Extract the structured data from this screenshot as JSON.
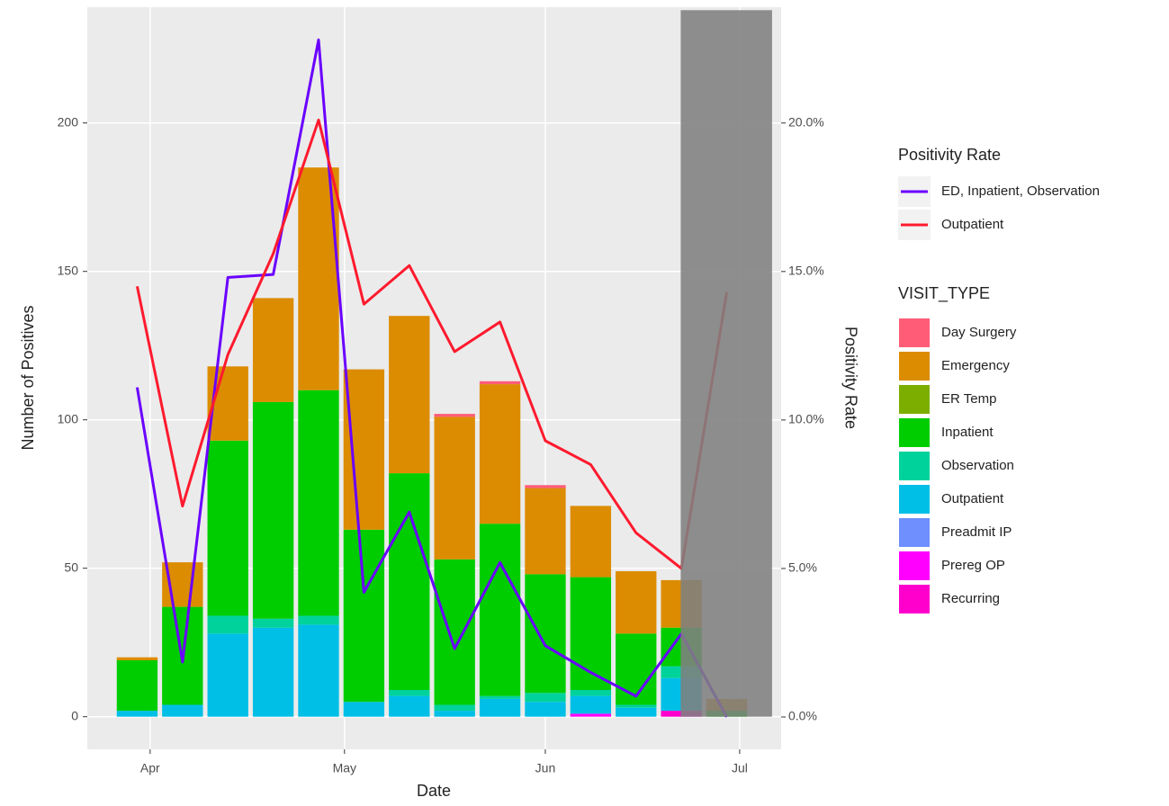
{
  "chart_data": {
    "type": "bar",
    "xlabel": "Date",
    "ylabel": "Number of Positives",
    "y2label": "Positivity Rate",
    "line_legend_title": "Positivity Rate",
    "bar_legend_title": "VISIT_TYPE",
    "x": [
      89,
      96,
      103,
      110,
      117,
      124,
      131,
      138,
      145,
      152,
      159,
      166,
      173,
      180
    ],
    "xlim": [
      81.3,
      188.4
    ],
    "xticks": [
      {
        "value": 91,
        "label": "Apr"
      },
      {
        "value": 121,
        "label": "May"
      },
      {
        "value": 152,
        "label": "Jun"
      },
      {
        "value": 182,
        "label": "Jul"
      }
    ],
    "ylim": [
      -11,
      239
    ],
    "yticks": [
      0,
      50,
      100,
      150,
      200
    ],
    "y2lim": [
      -1.09,
      23.9
    ],
    "y2ticks": [
      {
        "value": 0,
        "label": "0.0%"
      },
      {
        "value": 5,
        "label": "5.0%"
      },
      {
        "value": 10,
        "label": "10.0%"
      },
      {
        "value": 15,
        "label": "15.0%"
      },
      {
        "value": 20,
        "label": "20.0%"
      }
    ],
    "grid": true,
    "series": [
      {
        "name": "Day Surgery",
        "type": "bar",
        "color": "#ff5c78",
        "values": [
          0,
          0,
          0,
          0,
          0,
          0,
          0,
          1,
          1,
          1,
          0,
          0,
          0,
          0
        ]
      },
      {
        "name": "Emergency",
        "type": "bar",
        "color": "#dc8c00",
        "values": [
          1,
          15,
          25,
          35,
          75,
          54,
          53,
          48,
          47,
          29,
          24,
          21,
          16,
          4
        ]
      },
      {
        "name": "ER Temp",
        "type": "bar",
        "color": "#7cae00",
        "values": [
          0,
          0,
          0,
          0,
          0,
          0,
          0,
          0,
          0,
          0,
          0,
          0,
          0,
          0
        ]
      },
      {
        "name": "Inpatient",
        "type": "bar",
        "color": "#00cd00",
        "values": [
          17,
          33,
          59,
          73,
          76,
          58,
          73,
          49,
          58,
          40,
          38,
          24,
          13,
          2
        ]
      },
      {
        "name": "Observation",
        "type": "bar",
        "color": "#00d29c",
        "values": [
          0,
          0,
          6,
          3,
          3,
          0,
          2,
          2,
          1,
          3,
          2,
          1,
          4,
          0
        ]
      },
      {
        "name": "Outpatient",
        "type": "bar",
        "color": "#00bfe6",
        "values": [
          2,
          4,
          28,
          30,
          31,
          5,
          7,
          2,
          6,
          5,
          6,
          3,
          11,
          0
        ]
      },
      {
        "name": "Preadmit IP",
        "type": "bar",
        "color": "#6f8fff",
        "values": [
          0,
          0,
          0,
          0,
          0,
          0,
          0,
          0,
          0,
          0,
          0,
          0,
          0,
          0
        ]
      },
      {
        "name": "Prereg OP",
        "type": "bar",
        "color": "#ff00ff",
        "values": [
          0,
          0,
          0,
          0,
          0,
          0,
          0,
          0,
          0,
          0,
          1,
          0,
          0,
          0
        ]
      },
      {
        "name": "Recurring",
        "type": "bar",
        "color": "#ff00cc",
        "values": [
          0,
          0,
          0,
          0,
          0,
          0,
          0,
          0,
          0,
          0,
          0,
          0,
          2,
          0
        ]
      },
      {
        "name": "ED, Inpatient, Observation",
        "type": "line",
        "axis": "y2",
        "color": "#6a00ff",
        "values": [
          11.1,
          1.85,
          14.8,
          14.9,
          22.8,
          4.2,
          6.9,
          2.3,
          5.2,
          2.4,
          1.5,
          0.7,
          2.8,
          0.0
        ]
      },
      {
        "name": "Outpatient",
        "type": "line",
        "axis": "y2",
        "color": "#ff1a2e",
        "values": [
          14.5,
          7.1,
          12.2,
          15.6,
          20.1,
          13.9,
          15.2,
          12.3,
          13.3,
          9.3,
          8.5,
          6.2,
          5.0,
          14.3
        ]
      }
    ],
    "shade": {
      "x": [
        172.9,
        187
      ],
      "y": [
        0,
        238
      ],
      "color": "#7f7f7f"
    }
  }
}
